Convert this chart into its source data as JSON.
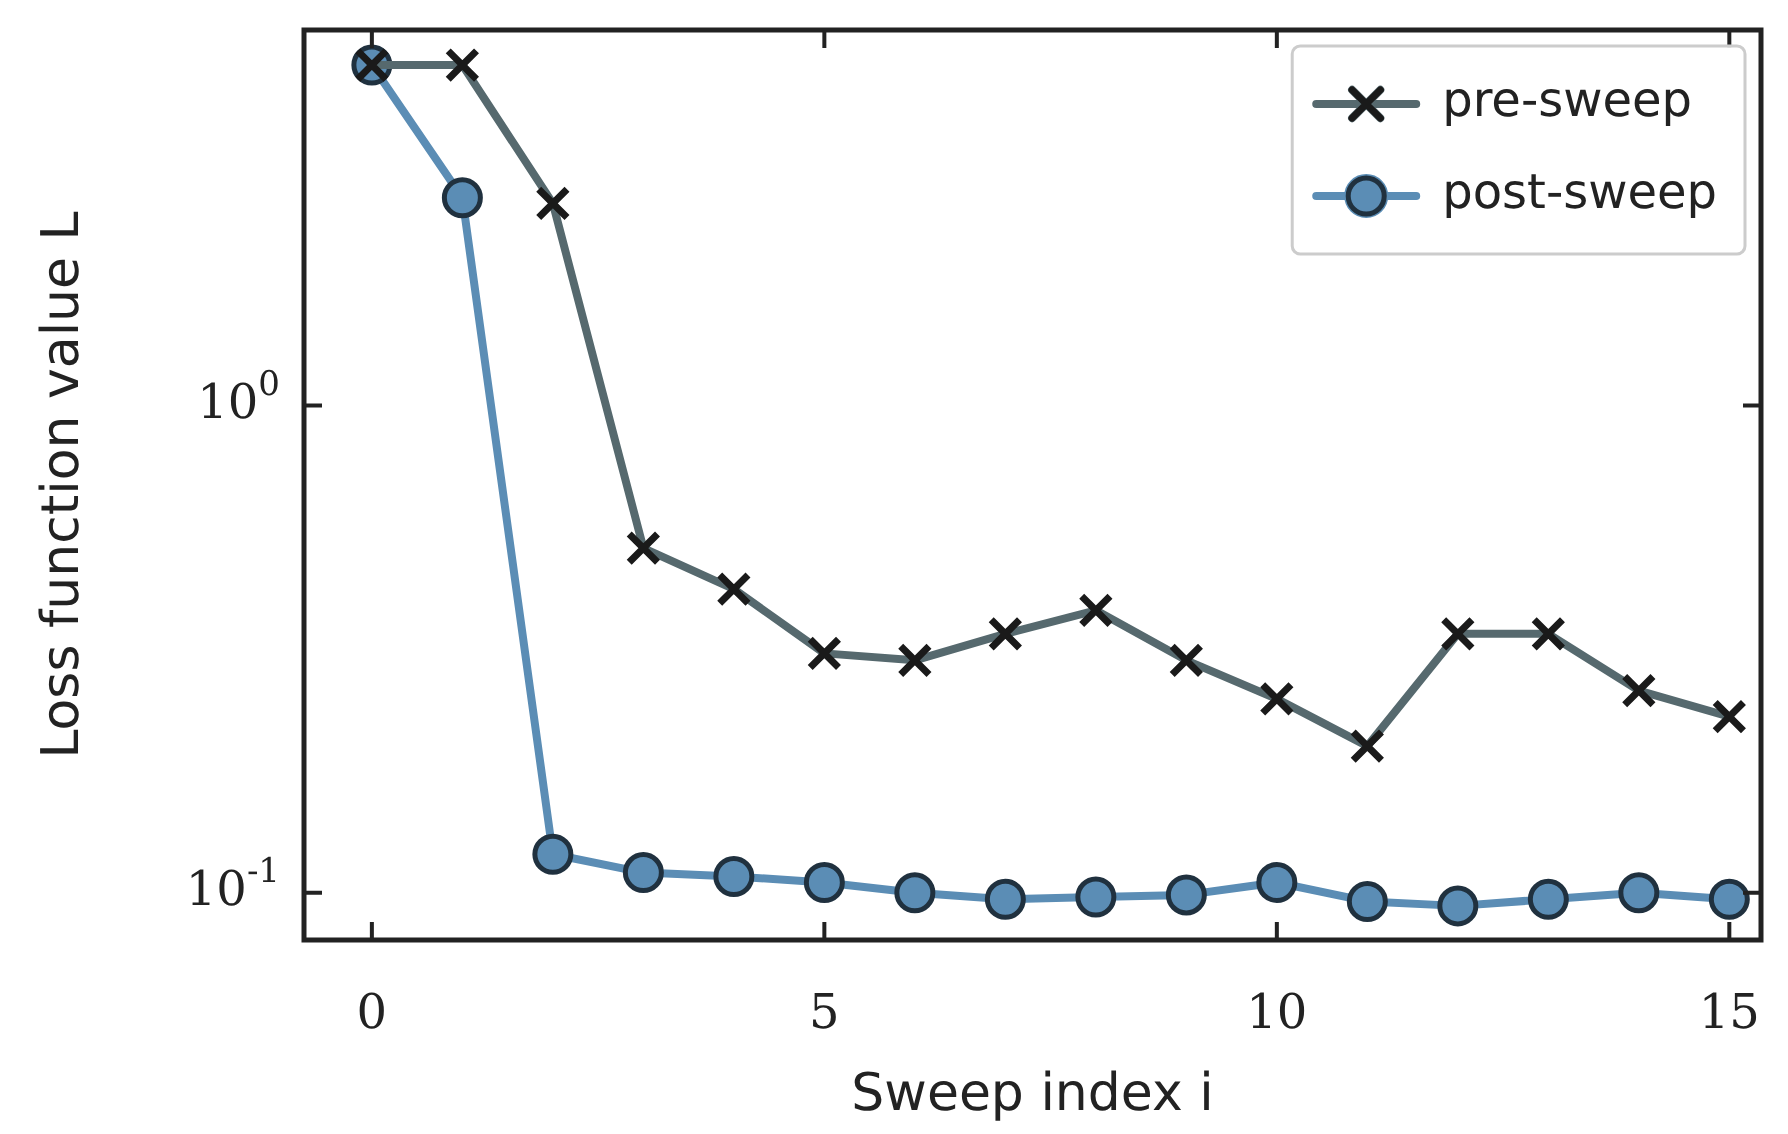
{
  "chart_data": {
    "type": "line",
    "xlabel": "Sweep index i",
    "ylabel": "Loss function value L",
    "log": "y",
    "x": [
      0,
      1,
      2,
      3,
      4,
      5,
      6,
      7,
      8,
      9,
      10,
      11,
      12,
      13,
      14,
      15
    ],
    "xlim": [
      -0.75,
      15.35
    ],
    "xticks": [
      0,
      5,
      10,
      15
    ],
    "ylim": [
      0.08,
      5.9
    ],
    "yticks": [
      {
        "value": 0.1,
        "label": "10$^{-1}$"
      },
      {
        "value": 1,
        "label": "10$^{0}$"
      }
    ],
    "grid": false,
    "legend": "top right",
    "line_style": "solid",
    "series": [
      {
        "name": "pre-sweep",
        "color": "#56696e",
        "marker": "cross",
        "values": [
          5.0,
          5.0,
          2.6,
          0.51,
          0.42,
          0.31,
          0.3,
          0.34,
          0.38,
          0.3,
          0.25,
          0.2,
          0.34,
          0.34,
          0.26,
          0.23
        ]
      },
      {
        "name": "post-sweep",
        "color": "#5b8db5",
        "marker": "circle",
        "values": [
          5.0,
          2.67,
          0.12,
          0.11,
          0.108,
          0.105,
          0.1,
          0.097,
          0.098,
          0.099,
          0.105,
          0.096,
          0.094,
          0.097,
          0.1,
          0.097
        ]
      }
    ]
  }
}
